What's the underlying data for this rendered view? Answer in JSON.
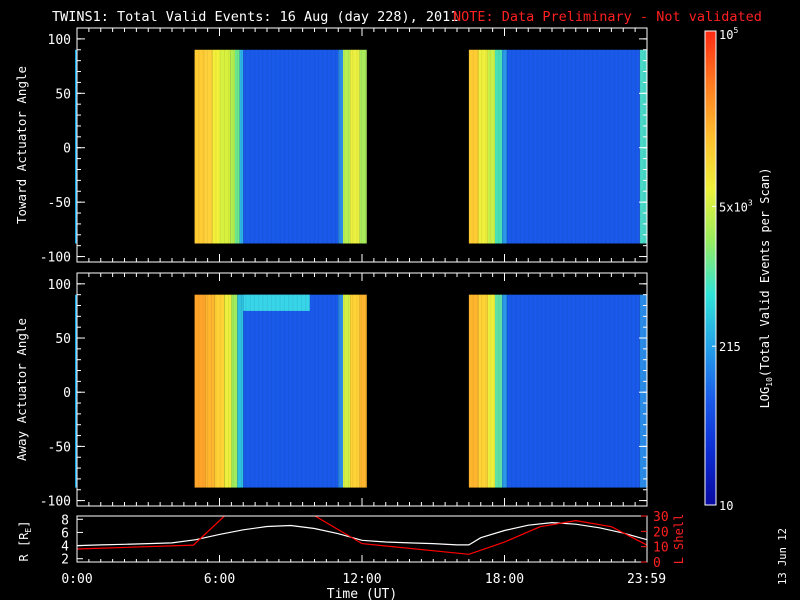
{
  "chart_data": [
    {
      "type": "heatmap",
      "title": "TWINS1: Total Valid Events: 16 Aug (day 228), 2011",
      "note": "NOTE: Data Preliminary - Not validated",
      "ylabel": "Toward Actuator Angle",
      "ylim": [
        -105,
        110
      ],
      "yticks": [
        100,
        50,
        0,
        -50,
        -100
      ],
      "xlim_hours": [
        0,
        24
      ],
      "x_minor_tick_hours": 0.5,
      "angle_range": [
        -88,
        90
      ],
      "data_intervals_hours": [
        [
          4.95,
          12.2
        ],
        [
          16.5,
          24
        ]
      ],
      "stripes": [
        {
          "t0": 4.95,
          "t1": 5.35,
          "color": "#ffcc33"
        },
        {
          "t0": 5.35,
          "t1": 5.7,
          "color": "#ffd23c"
        },
        {
          "t0": 5.7,
          "t1": 6.0,
          "color": "#f4f03a"
        },
        {
          "t0": 6.0,
          "t1": 6.45,
          "color": "#d8f03e"
        },
        {
          "t0": 6.45,
          "t1": 6.65,
          "color": "#b4f050"
        },
        {
          "t0": 6.65,
          "t1": 6.85,
          "color": "#6ce88e"
        },
        {
          "t0": 6.85,
          "t1": 7.0,
          "color": "#2db3e6"
        },
        {
          "t0": 7.0,
          "t1": 11.0,
          "color": "#1a5aea"
        },
        {
          "t0": 11.0,
          "t1": 11.2,
          "color": "#2a8ce8"
        },
        {
          "t0": 11.2,
          "t1": 11.5,
          "color": "#b8f052"
        },
        {
          "t0": 11.5,
          "t1": 11.9,
          "color": "#ecf040"
        },
        {
          "t0": 11.9,
          "t1": 12.2,
          "color": "#a8ec5c"
        },
        {
          "t0": 16.5,
          "t1": 16.9,
          "color": "#ffcc33"
        },
        {
          "t0": 16.9,
          "t1": 17.3,
          "color": "#f0f03c"
        },
        {
          "t0": 17.3,
          "t1": 17.6,
          "color": "#c8f048"
        },
        {
          "t0": 17.6,
          "t1": 17.9,
          "color": "#48e0b4"
        },
        {
          "t0": 17.9,
          "t1": 18.1,
          "color": "#2a9ae8"
        },
        {
          "t0": 18.1,
          "t1": 23.7,
          "color": "#1a5aea"
        },
        {
          "t0": 23.7,
          "t1": 24.0,
          "color": "#4ad8c8"
        }
      ],
      "upper_band": null
    },
    {
      "type": "heatmap",
      "ylabel": "Away Actuator Angle",
      "ylim": [
        -105,
        110
      ],
      "yticks": [
        100,
        50,
        0,
        -50,
        -100
      ],
      "xlim_hours": [
        0,
        24
      ],
      "x_minor_tick_hours": 0.5,
      "angle_range": [
        -88,
        90
      ],
      "data_intervals_hours": [
        [
          4.95,
          12.2
        ],
        [
          16.5,
          24
        ]
      ],
      "stripes": [
        {
          "t0": 4.95,
          "t1": 5.4,
          "color": "#ffa62a"
        },
        {
          "t0": 5.4,
          "t1": 5.8,
          "color": "#ffb62e"
        },
        {
          "t0": 5.8,
          "t1": 6.2,
          "color": "#ffd236"
        },
        {
          "t0": 6.2,
          "t1": 6.5,
          "color": "#ecef3c"
        },
        {
          "t0": 6.5,
          "t1": 6.75,
          "color": "#a0ec5e"
        },
        {
          "t0": 6.75,
          "t1": 7.0,
          "color": "#2ec0de"
        },
        {
          "t0": 7.0,
          "t1": 11.0,
          "color": "#1a5aea"
        },
        {
          "t0": 11.0,
          "t1": 11.2,
          "color": "#2a8ce8"
        },
        {
          "t0": 11.2,
          "t1": 11.5,
          "color": "#d4f044"
        },
        {
          "t0": 11.5,
          "t1": 11.9,
          "color": "#ffd236"
        },
        {
          "t0": 11.9,
          "t1": 12.2,
          "color": "#ffb62e"
        },
        {
          "t0": 16.5,
          "t1": 16.9,
          "color": "#ffb62e"
        },
        {
          "t0": 16.9,
          "t1": 17.3,
          "color": "#ffd236"
        },
        {
          "t0": 17.3,
          "t1": 17.6,
          "color": "#ecef3c"
        },
        {
          "t0": 17.6,
          "t1": 17.9,
          "color": "#5ee0a6"
        },
        {
          "t0": 17.9,
          "t1": 18.1,
          "color": "#2a9ae8"
        },
        {
          "t0": 18.1,
          "t1": 23.7,
          "color": "#1a5aea"
        },
        {
          "t0": 23.7,
          "t1": 24.0,
          "color": "#2a8ce8"
        }
      ],
      "upper_band": {
        "t0": 7.0,
        "t1": 9.8,
        "a_min": 75,
        "a_max": 90,
        "color": "#38d4e8"
      }
    },
    {
      "type": "line",
      "ylabel": "R [R_E]",
      "ylabel_text": "R [R",
      "ylabel_sub": "E",
      "ylabel_close": "]",
      "y2label": "L Shell",
      "ylim": [
        1.5,
        8.5
      ],
      "yticks": [
        2,
        4,
        6,
        8
      ],
      "y2lim": [
        0,
        30
      ],
      "y2ticks": [
        0,
        10,
        20,
        30
      ],
      "xlabel": "Time (UT)",
      "xticks": [
        {
          "hours": 0,
          "label": "0:00"
        },
        {
          "hours": 6,
          "label": "6:00"
        },
        {
          "hours": 12,
          "label": "12:00"
        },
        {
          "hours": 18,
          "label": "18:00"
        },
        {
          "hours": 23.98,
          "label": "23:59"
        }
      ],
      "series": [
        {
          "color": "#ffffff",
          "axis": "left",
          "x": [
            0,
            1,
            2,
            3,
            4,
            5,
            6,
            7,
            8,
            9,
            10,
            11,
            12,
            13,
            14,
            15,
            16,
            16.5,
            17,
            18,
            19,
            20,
            21,
            22,
            23,
            24
          ],
          "y": [
            4.0,
            4.1,
            4.2,
            4.3,
            4.4,
            4.9,
            5.7,
            6.4,
            6.9,
            7.05,
            6.6,
            5.8,
            4.8,
            4.55,
            4.4,
            4.3,
            4.1,
            4.1,
            5.2,
            6.3,
            7.1,
            7.5,
            7.25,
            6.7,
            5.9,
            4.9
          ]
        },
        {
          "color": "#ff0000",
          "axis": "right",
          "x": [
            0,
            4.9,
            6.35,
            9.8,
            12.0,
            16.5,
            18.0,
            19.5,
            21.0,
            22.5,
            24.0
          ],
          "y": [
            8.5,
            11.0,
            32.0,
            32.0,
            12.0,
            5.0,
            13.0,
            23.0,
            27.0,
            23.0,
            11.0
          ]
        }
      ]
    }
  ],
  "colorbar": {
    "label_prefix": "LOG",
    "label_sub": "10",
    "label_rest": "(Total Valid Events per Scan)",
    "stops": [
      "#0a0aa0",
      "#0c2cd2",
      "#1a5aea",
      "#24a0e8",
      "#30e4d8",
      "#96ec60",
      "#eef03a",
      "#ffbe2e",
      "#ff7a20",
      "#ff2a14"
    ],
    "ticks": [
      {
        "frac": 1.0,
        "base": "10",
        "exp": "5"
      },
      {
        "frac": 0.63,
        "base": "5x10",
        "exp": "3"
      },
      {
        "frac": 0.335,
        "base": "215",
        "exp": ""
      },
      {
        "frac": 0.0,
        "base": "10",
        "exp": ""
      }
    ]
  },
  "date_stamp": "13 Jun 12"
}
